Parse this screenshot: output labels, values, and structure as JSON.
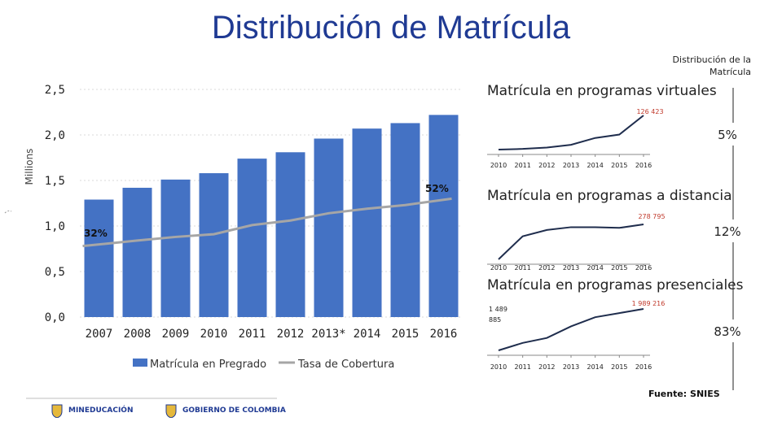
{
  "title": "Distribución de Matrícula",
  "donut_title": [
    "Distribución de la",
    "Matrícula"
  ],
  "source": "Fuente: SNIES",
  "logos": {
    "left": "MINEDUCACIÓN",
    "right": "GOBIERNO DE COLOMBIA"
  },
  "colors": {
    "bar": "#4472c4",
    "line": "#a6a6a6",
    "title": "#1f3a93",
    "value_label": "#c0392b"
  },
  "chart_data": [
    {
      "type": "bar",
      "name": "main",
      "categories": [
        "2007",
        "2008",
        "2009",
        "2010",
        "2011",
        "2012",
        "2013*",
        "2014",
        "2015",
        "2016"
      ],
      "series": [
        {
          "name": "Matrícula en Pregrado",
          "kind": "bar",
          "values": [
            1.29,
            1.42,
            1.51,
            1.58,
            1.74,
            1.81,
            1.96,
            2.07,
            2.13,
            2.22
          ]
        },
        {
          "name": "Tasa de Cobertura",
          "kind": "line",
          "values": [
            0.78,
            0.84,
            0.88,
            0.91,
            1.01,
            1.06,
            1.14,
            1.19,
            1.23,
            1.3
          ]
        }
      ],
      "ylabel": "Millions",
      "yticks": [
        "0,0",
        "0,5",
        "1,0",
        "1,5",
        "2,0",
        "2,5"
      ],
      "ylim": [
        0,
        2.5
      ],
      "annotations": {
        "first": "32%",
        "last": "52%"
      },
      "legend": [
        "Matrícula en Pregrado",
        "Tasa de Cobertura"
      ]
    },
    {
      "type": "line",
      "name": "virtuales",
      "title": "Matrícula en programas virtuales",
      "x": [
        "2010",
        "2011",
        "2012",
        "2013",
        "2014",
        "2015",
        "2016"
      ],
      "values": [
        0.0,
        0.02,
        0.06,
        0.14,
        0.34,
        0.44,
        1.0
      ],
      "value_label": "126 423",
      "share": "5%"
    },
    {
      "type": "line",
      "name": "distancia",
      "title": "Matrícula en programas a distancia",
      "x": [
        "2010",
        "2011",
        "2012",
        "2013",
        "2014",
        "2015",
        "2016"
      ],
      "values": [
        0.0,
        0.66,
        0.84,
        0.92,
        0.92,
        0.9,
        1.0
      ],
      "value_label": "278 795",
      "share": "12%"
    },
    {
      "type": "line",
      "name": "presenciales",
      "title": "Matrícula en programas presenciales",
      "x": [
        "2010",
        "2011",
        "2012",
        "2013",
        "2014",
        "2015",
        "2016"
      ],
      "values": [
        0.0,
        0.18,
        0.3,
        0.58,
        0.8,
        0.9,
        1.0
      ],
      "value_label_start": "1 489 885",
      "value_label": "1 989 216",
      "share": "83%"
    }
  ]
}
